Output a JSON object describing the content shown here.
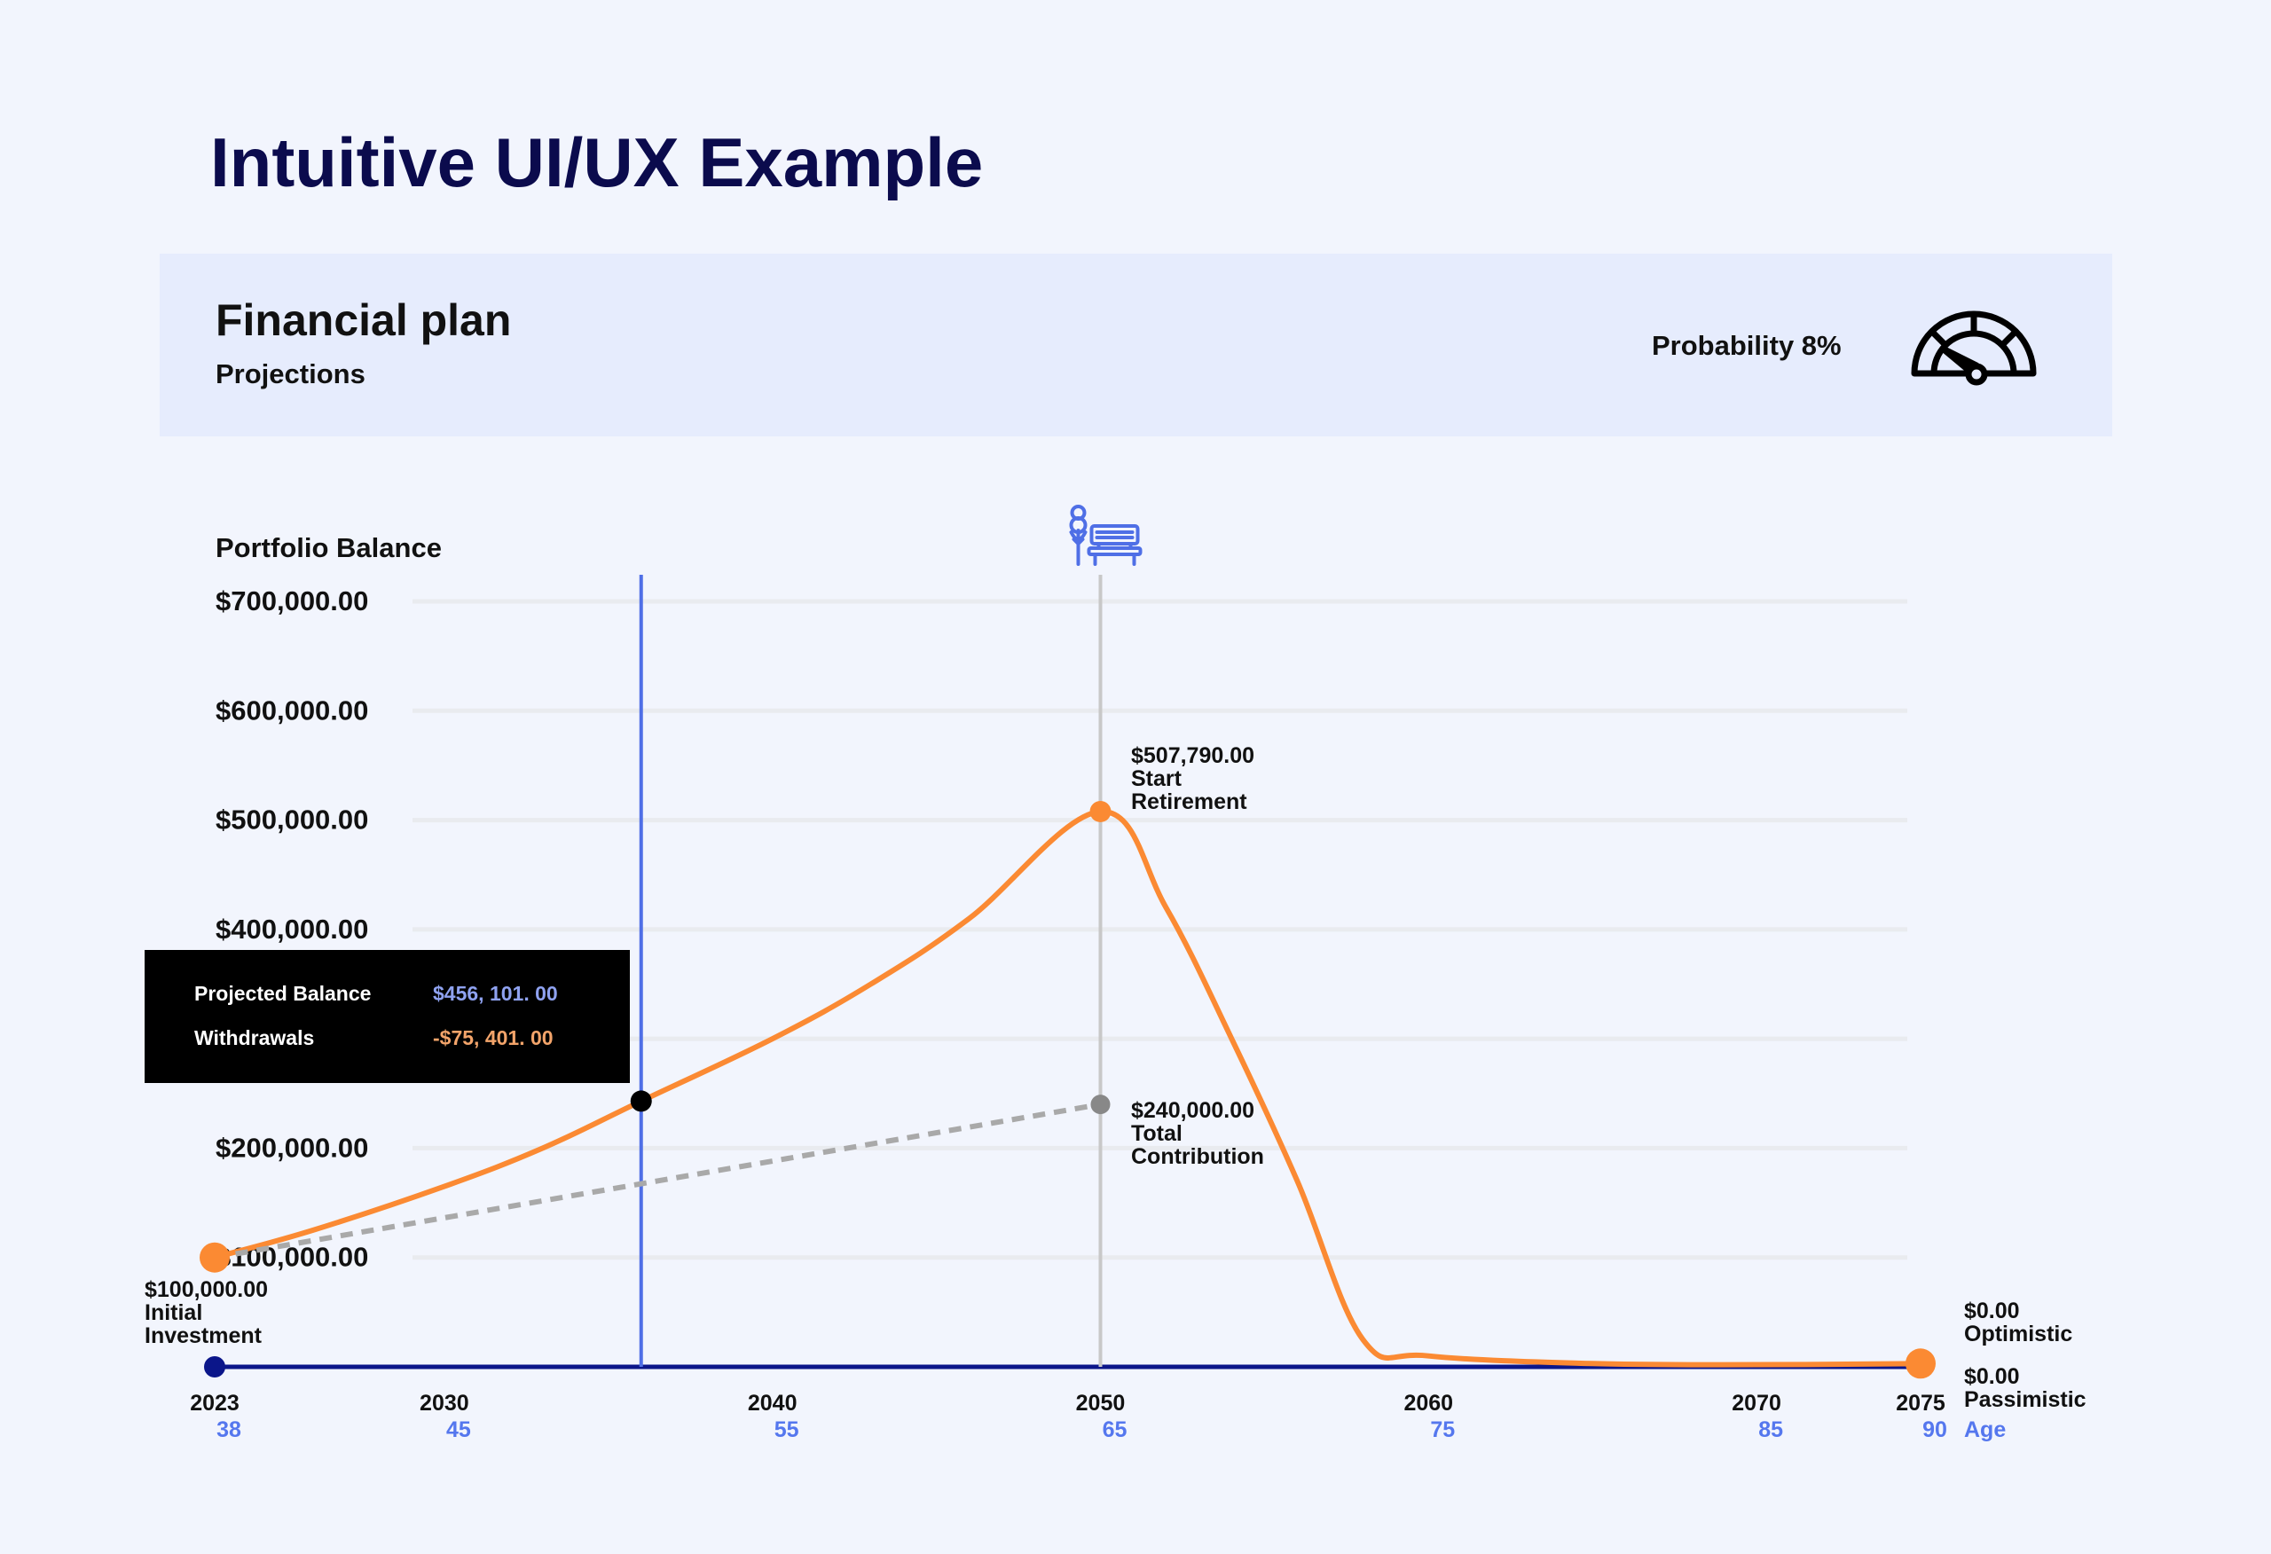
{
  "page_title": "Intuitive UI/UX Example",
  "header": {
    "title": "Financial plan",
    "subtitle": "Projections",
    "probability_label": "Probability 8%",
    "icon": "gauge-icon"
  },
  "tooltip": {
    "rows": [
      {
        "label": "Projected Balance",
        "value": "$456, 101. 00",
        "color": "#8fa2f0"
      },
      {
        "label": "Withdrawals",
        "value": "-$75, 401. 00",
        "color": "#f3a46a"
      }
    ]
  },
  "colors": {
    "projection": "#fb8a33",
    "contribution": "#a9a9a9",
    "cursor": "#4f6fe6",
    "retirement": "#c8c8c8",
    "axis": "#0b168a",
    "age": "#5577ee"
  },
  "chart_data": {
    "type": "line",
    "ylabel": "Portfolio Balance",
    "ylim": [
      0,
      700000
    ],
    "xlim": [
      2023,
      2075
    ],
    "grid": true,
    "y_ticks": [
      {
        "value": 700000,
        "label": "$700,000.00"
      },
      {
        "value": 600000,
        "label": "$600,000.00"
      },
      {
        "value": 500000,
        "label": "$500,000.00"
      },
      {
        "value": 400000,
        "label": "$400,000.00"
      },
      {
        "value": 200000,
        "label": "$200,000.00"
      },
      {
        "value": 100000,
        "label": "$100,000.00"
      }
    ],
    "x_ticks": [
      {
        "year": 2023,
        "label": "2023",
        "age": "38"
      },
      {
        "year": 2030,
        "label": "2030",
        "age": "45"
      },
      {
        "year": 2040,
        "label": "2040",
        "age": "55"
      },
      {
        "year": 2050,
        "label": "2050",
        "age": "65"
      },
      {
        "year": 2060,
        "label": "2060",
        "age": "75"
      },
      {
        "year": 2070,
        "label": "2070",
        "age": "85"
      },
      {
        "year": 2075,
        "label": "2075",
        "age": "90"
      }
    ],
    "age_label": "Age",
    "series": [
      {
        "key": "projection",
        "x": [
          2023,
          2026,
          2030,
          2033,
          2036,
          2040,
          2043,
          2046,
          2050,
          2052,
          2054,
          2056,
          2058,
          2060,
          2065,
          2070,
          2075
        ],
        "y": [
          100000,
          125000,
          165000,
          200000,
          243000,
          300000,
          350000,
          410000,
          507790,
          420000,
          300000,
          170000,
          25000,
          10000,
          3000,
          2000,
          3000
        ]
      },
      {
        "key": "contribution",
        "dashed": true,
        "x": [
          2023,
          2050
        ],
        "y": [
          100000,
          240000
        ]
      }
    ],
    "cursor_year": 2036,
    "cursor_value": 243000,
    "retirement_year": 2050,
    "annotations": [
      {
        "year": 2050,
        "value": 507790,
        "lines": [
          "$507,790.00",
          "Start",
          "Retirement"
        ]
      },
      {
        "year": 2050,
        "value": 240000,
        "lines": [
          "$240,000.00",
          "Total",
          "Contribution"
        ]
      },
      {
        "year": 2023,
        "value": 100000,
        "lines": [
          "$100,000.00",
          "Initial",
          "Investment"
        ]
      },
      {
        "year": 2075,
        "value": 0,
        "lines": [
          "$0.00",
          "Optimistic"
        ]
      },
      {
        "year": 2075,
        "value": 0,
        "lines": [
          "$0.00",
          "Passimistic"
        ]
      }
    ]
  }
}
